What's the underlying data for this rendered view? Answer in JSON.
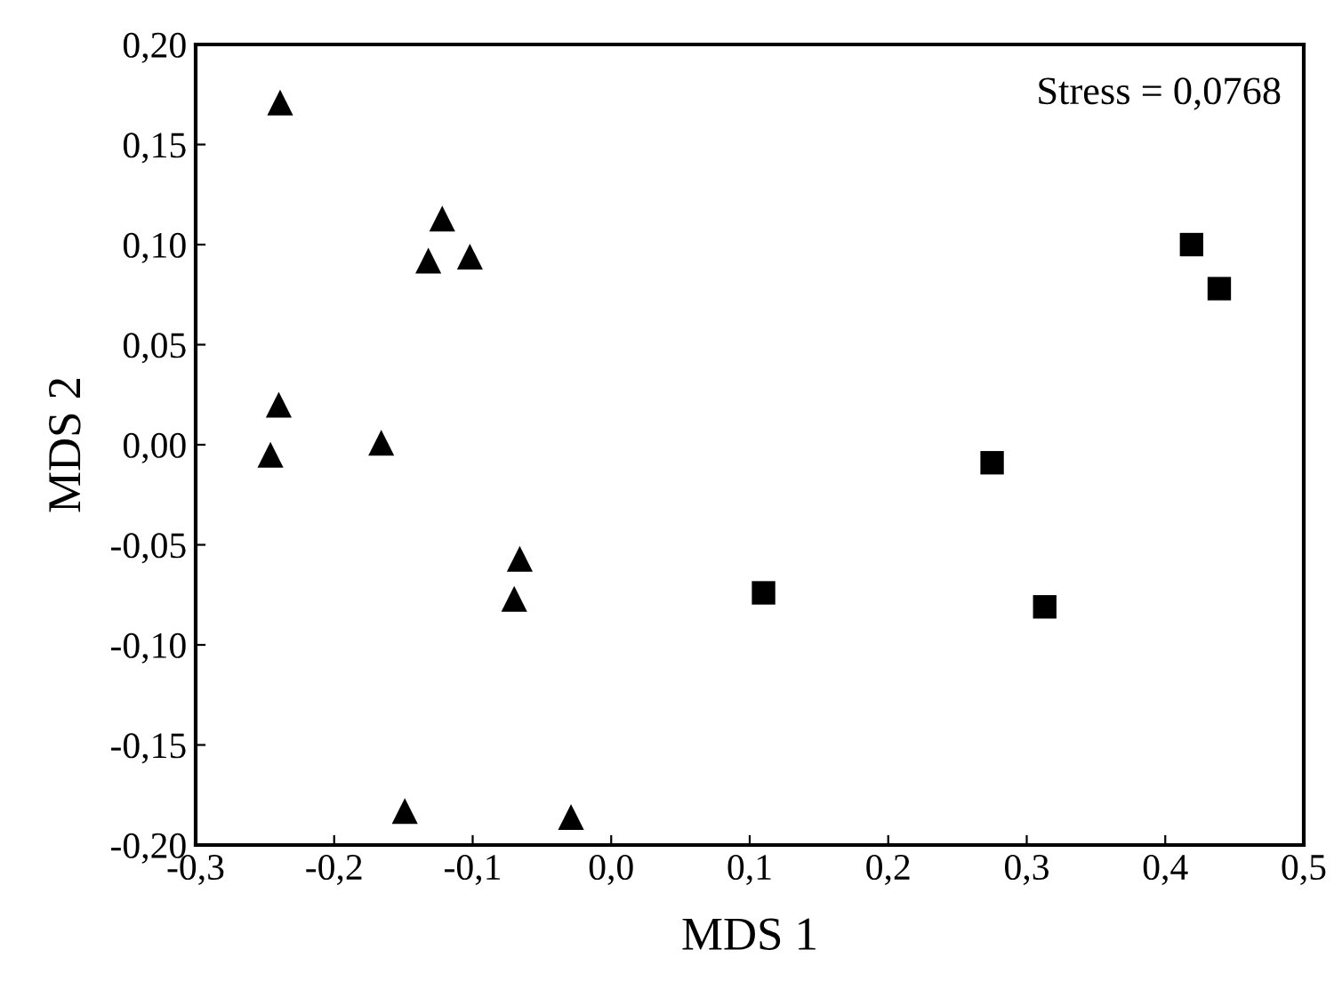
{
  "chart_data": {
    "type": "scatter",
    "xlabel": "MDS 1",
    "ylabel": "MDS 2",
    "annotations": [
      "Stress = 0,0768"
    ],
    "series": [
      {
        "color": "#000000",
        "marker": "triangle",
        "x": [
          -0.239,
          -0.122,
          -0.132,
          -0.102,
          -0.24,
          -0.246,
          -0.166,
          -0.066,
          -0.07,
          -0.149,
          -0.029
        ],
        "values": [
          0.171,
          0.113,
          0.092,
          0.094,
          0.02,
          -0.005,
          0.001,
          -0.057,
          -0.077,
          -0.183,
          -0.186
        ]
      },
      {
        "color": "#000000",
        "marker": "square",
        "x": [
          0.419,
          0.439,
          0.275,
          0.11,
          0.313
        ],
        "values": [
          0.1,
          0.078,
          -0.009,
          -0.074,
          -0.081
        ]
      }
    ],
    "xlim": [
      -0.3,
      0.5
    ],
    "xticks": [
      {
        "value": -0.3,
        "label": "-0,3"
      },
      {
        "value": -0.2,
        "label": "-0,2"
      },
      {
        "value": -0.1,
        "label": "-0,1"
      },
      {
        "value": 0.0,
        "label": "0,0"
      },
      {
        "value": 0.1,
        "label": "0,1"
      },
      {
        "value": 0.2,
        "label": "0,2"
      },
      {
        "value": 0.3,
        "label": "0,3"
      },
      {
        "value": 0.4,
        "label": "0,4"
      },
      {
        "value": 0.5,
        "label": "0,5"
      }
    ],
    "ylim": [
      -0.2,
      0.2
    ],
    "yticks": [
      {
        "value": -0.2,
        "label": "-0,20"
      },
      {
        "value": -0.15,
        "label": "-0,15"
      },
      {
        "value": -0.1,
        "label": "-0,10"
      },
      {
        "value": -0.05,
        "label": "-0,05"
      },
      {
        "value": 0.0,
        "label": "0,00"
      },
      {
        "value": 0.05,
        "label": "0,05"
      },
      {
        "value": 0.1,
        "label": "0,10"
      },
      {
        "value": 0.15,
        "label": "0,15"
      },
      {
        "value": 0.2,
        "label": "0,20"
      }
    ],
    "grid": false,
    "legend": false
  }
}
